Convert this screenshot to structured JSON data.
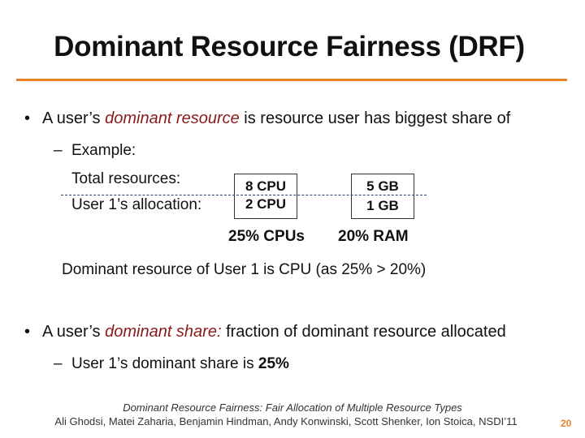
{
  "title": "Dominant Resource Fairness (DRF)",
  "bullet1": {
    "marker": "•",
    "before": "A user’s ",
    "emph": "dominant resource",
    "after": " is resource user has biggest share of"
  },
  "sub1": {
    "marker": "–",
    "text": "Example:"
  },
  "example": {
    "row1_label": "Total resources:",
    "row2_label": "User 1’s allocation:",
    "cpu_total": "8 CPU",
    "cpu_user": "2 CPU",
    "mem_total": "5 GB",
    "mem_user": "1 GB",
    "cpu_share": "25% CPUs",
    "mem_share": "20% RAM",
    "conclusion": "Dominant resource of User 1 is CPU (as 25% > 20%)"
  },
  "bullet2": {
    "marker": "•",
    "before": "A user’s ",
    "emph": "dominant share:",
    "after": " fraction of dominant resource allocated"
  },
  "sub2": {
    "marker": "–",
    "before": "User 1’s dominant share is ",
    "bold": "25%"
  },
  "footer": {
    "line1": "Dominant Resource Fairness: Fair Allocation of Multiple Resource Types",
    "line2": "Ali Ghodsi, Matei Zaharia, Benjamin Hindman, Andy Konwinski, Scott Shenker, Ion Stoica, NSDI’11"
  },
  "page_number": "20",
  "colors": {
    "accent": "#e8822a",
    "emphasis": "#8b1a1a",
    "dashed_line": "#2c3e7a"
  }
}
